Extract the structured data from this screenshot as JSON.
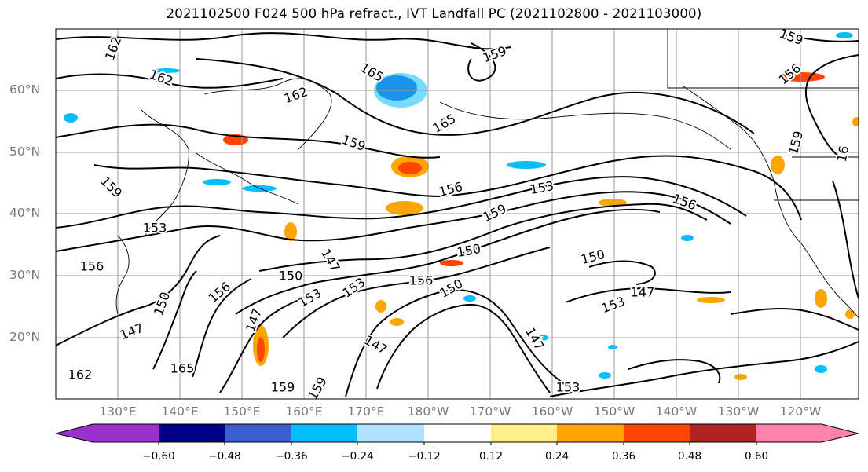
{
  "title": "2021102500 F024 500 hPa refract., IVT Landfall PC (2021102800 - 2021103000)",
  "lat_labels": [
    "60°N",
    "50°N",
    "40°N",
    "30°N",
    "20°N"
  ],
  "lon_labels": [
    "130°E",
    "140°E",
    "150°E",
    "160°E",
    "170°E",
    "180°W",
    "170°W",
    "160°W",
    "150°W",
    "140°W",
    "130°W",
    "120°W"
  ],
  "contour_labels": [
    "162",
    "162",
    "162",
    "165",
    "165",
    "159",
    "156",
    "153",
    "159",
    "150",
    "150",
    "147",
    "150",
    "156",
    "153",
    "147",
    "153",
    "156",
    "147",
    "150",
    "147",
    "147",
    "156",
    "159",
    "153",
    "156",
    "165",
    "162",
    "159",
    "150",
    "159",
    "159",
    "153",
    "156",
    "147",
    "16",
    "153",
    "159",
    "159"
  ],
  "colorbar": {
    "colors": [
      "#9932cc",
      "#00008b",
      "#3a5fcd",
      "#00bfff",
      "#b0e2ff",
      "#ffffff",
      "#ffec8b",
      "#ffa500",
      "#ff4500",
      "#b22222",
      "#ff82ab"
    ],
    "tick_labels": [
      "−0.60",
      "−0.48",
      "−0.36",
      "−0.24",
      "−0.12",
      "0.12",
      "0.24",
      "0.36",
      "0.48",
      "0.60"
    ]
  },
  "colors": {
    "land_line": "#000000",
    "grid": "#999999",
    "axis_label": "#777777"
  }
}
